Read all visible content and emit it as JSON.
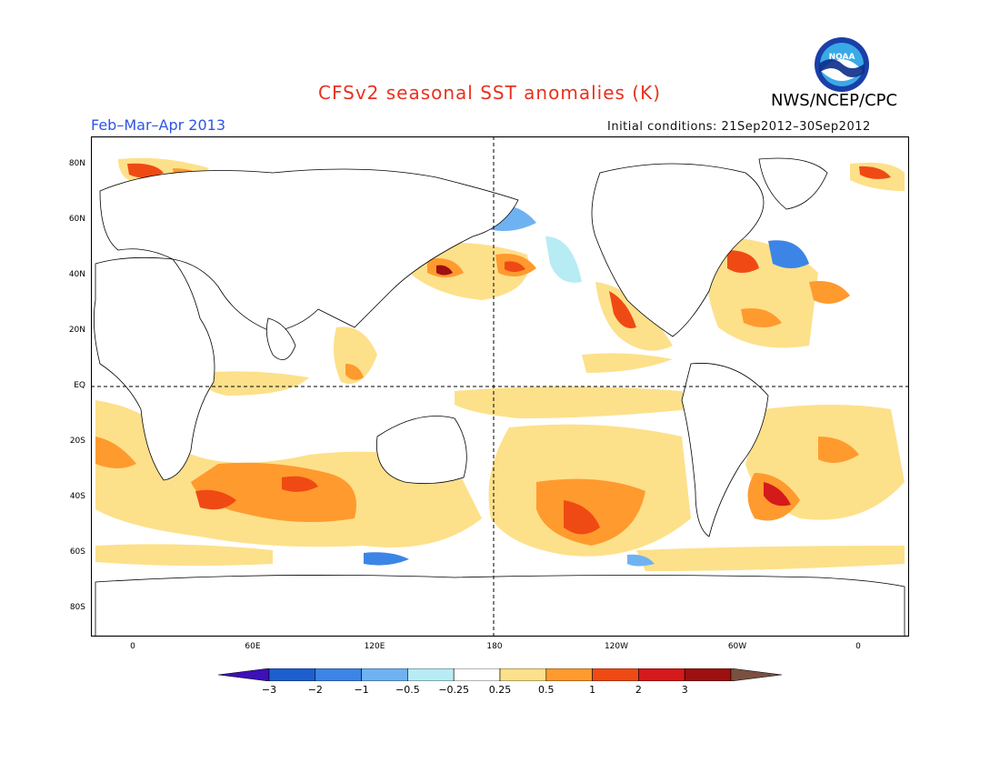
{
  "title": "CFSv2 seasonal SST anomalies (K)",
  "agency": "NWS/NCEP/CPC",
  "logo_text": "NOAA",
  "period": "Feb–Mar–Apr 2013",
  "initial_conditions": "Initial conditions: 21Sep2012–30Sep2012",
  "axes": {
    "lat_labels": [
      "80N",
      "60N",
      "40N",
      "20N",
      "EQ",
      "20S",
      "40S",
      "60S",
      "80S"
    ],
    "lon_labels": [
      "0",
      "60E",
      "120E",
      "180",
      "120W",
      "60W",
      "0"
    ]
  },
  "colorbar": {
    "labels": [
      "−3",
      "−2",
      "−1",
      "−0.5",
      "−0.25",
      "0.25",
      "0.5",
      "1",
      "2",
      "3"
    ],
    "colors": [
      "#3d10b8",
      "#1e5fcf",
      "#3c85e6",
      "#6fb2f2",
      "#b7ecf5",
      "#ffffff",
      "#fde08a",
      "#ff9a2e",
      "#f04a14",
      "#d41a1a",
      "#9c1010",
      "#7a5040"
    ]
  },
  "colors": {
    "title": "#e8321e",
    "period": "#2e55e6",
    "land": "#ffffff",
    "ocean_neutral": "#ffffff"
  }
}
